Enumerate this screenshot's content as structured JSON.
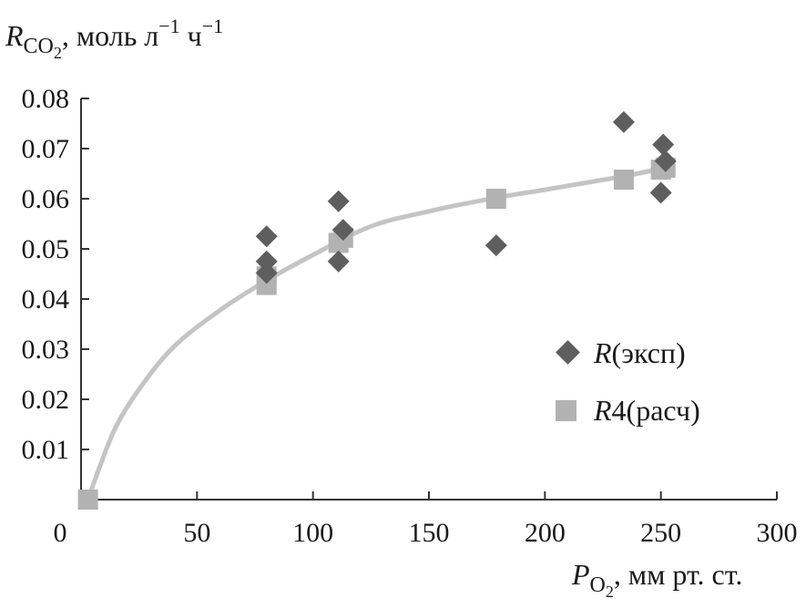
{
  "chart_data": {
    "type": "scatter",
    "title": "",
    "ylabel": {
      "symbol": "R",
      "sub": "CO",
      "subsub": "2",
      "units": ", моль л",
      "exp1": "−1",
      "units2": " ч",
      "exp2": "−1"
    },
    "xlabel": {
      "symbol": "P",
      "sub": "O",
      "subsub": "2",
      "units": ", мм рт. ст."
    },
    "xlim": [
      0,
      300
    ],
    "ylim": [
      0,
      0.08
    ],
    "xticks": [
      0,
      50,
      100,
      150,
      200,
      250,
      300
    ],
    "xtick_labels": [
      "0",
      "50",
      "100",
      "150",
      "200",
      "250",
      "300"
    ],
    "yticks": [
      0.01,
      0.02,
      0.03,
      0.04,
      0.05,
      0.06,
      0.07,
      0.08
    ],
    "ytick_labels": [
      "0.01",
      "0.02",
      "0.03",
      "0.04",
      "0.05",
      "0.06",
      "0.07",
      "0.08"
    ],
    "series": [
      {
        "name": "R(эксп)",
        "legend_symbol": "R",
        "legend_rest": "(эксп)",
        "marker": "diamond",
        "color": "#5e5e5e",
        "points": [
          [
            80,
            0.0525
          ],
          [
            80,
            0.0475
          ],
          [
            80,
            0.0452
          ],
          [
            111,
            0.0595
          ],
          [
            113,
            0.0538
          ],
          [
            111,
            0.0475
          ],
          [
            179,
            0.0507
          ],
          [
            234,
            0.0753
          ],
          [
            251,
            0.0708
          ],
          [
            252,
            0.0675
          ],
          [
            250,
            0.0612
          ]
        ]
      },
      {
        "name": "R4(расч)",
        "legend_symbol": "R",
        "legend_rest": "4(расч)",
        "marker": "square",
        "color": "#b2b2b2",
        "points": [
          [
            3,
            0.0
          ],
          [
            80,
            0.0428
          ],
          [
            80,
            0.0445
          ],
          [
            111,
            0.0512
          ],
          [
            113,
            0.0522
          ],
          [
            179,
            0.06
          ],
          [
            234,
            0.0638
          ],
          [
            250,
            0.0658
          ],
          [
            252,
            0.0662
          ]
        ]
      },
      {
        "name": "fit",
        "type": "line",
        "color": "#c4c4c4",
        "points": [
          [
            3,
            0.0
          ],
          [
            8,
            0.0065
          ],
          [
            15,
            0.0145
          ],
          [
            25,
            0.022
          ],
          [
            40,
            0.0305
          ],
          [
            60,
            0.0378
          ],
          [
            80,
            0.0437
          ],
          [
            100,
            0.0488
          ],
          [
            125,
            0.0545
          ],
          [
            150,
            0.0575
          ],
          [
            179,
            0.0602
          ],
          [
            200,
            0.0618
          ],
          [
            234,
            0.0645
          ],
          [
            252,
            0.0662
          ]
        ]
      }
    ]
  }
}
